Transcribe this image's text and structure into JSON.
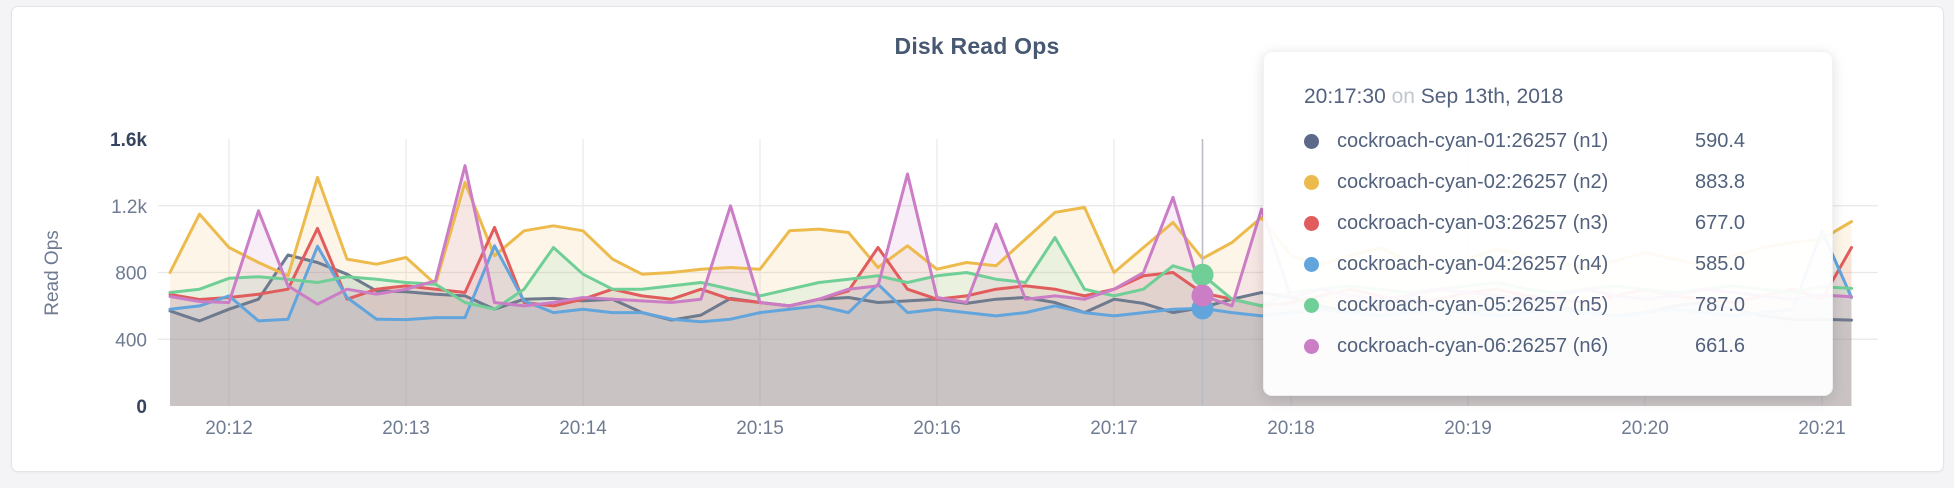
{
  "page": {
    "bg": "#f4f4f6",
    "card_bg": "#ffffff",
    "card_border": "#e3e4e8"
  },
  "chart": {
    "title": "Disk Read Ops",
    "title_color": "#475872",
    "ylabel": "Read Ops",
    "axis_tick_color": "#6f7b92",
    "axis_emph_color": "#37445f",
    "grid_color": "#e8e8e8",
    "hover_line_color": "#b9bcc2"
  },
  "chart_data": {
    "type": "area",
    "x_start_time": "20:11:40",
    "x_interval_seconds": 10,
    "ylim": [
      0,
      1600
    ],
    "grid": true,
    "x_ticks": [
      {
        "label": "20:12",
        "i": 2
      },
      {
        "label": "20:13",
        "i": 8
      },
      {
        "label": "20:14",
        "i": 14
      },
      {
        "label": "20:15",
        "i": 20
      },
      {
        "label": "20:16",
        "i": 26
      },
      {
        "label": "20:17",
        "i": 32
      },
      {
        "label": "20:18",
        "i": 38
      },
      {
        "label": "20:19",
        "i": 44
      },
      {
        "label": "20:20",
        "i": 50
      },
      {
        "label": "20:21",
        "i": 56
      }
    ],
    "y_ticks": [
      {
        "label": "0",
        "v": 0,
        "grid": false,
        "emph": true
      },
      {
        "label": "400",
        "v": 400,
        "grid": true,
        "emph": false
      },
      {
        "label": "800",
        "v": 800,
        "grid": true,
        "emph": false
      },
      {
        "label": "1.2k",
        "v": 1200,
        "grid": true,
        "emph": false
      },
      {
        "label": "1.6k",
        "v": 1600,
        "grid": false,
        "emph": true
      }
    ],
    "series": [
      {
        "id": "n1",
        "name": "cockroach-cyan-01:26257 (n1)",
        "color": "#6e7a8e",
        "values": [
          570,
          510,
          580,
          640,
          905,
          860,
          790,
          690,
          685,
          670,
          660,
          580,
          640,
          645,
          630,
          640,
          560,
          515,
          545,
          645,
          620,
          600,
          640,
          650,
          620,
          630,
          640,
          615,
          640,
          650,
          620,
          560,
          640,
          615,
          560,
          590.4,
          640,
          680,
          650,
          600,
          560,
          600,
          640,
          580,
          560,
          600,
          640,
          600,
          560,
          540,
          560,
          600,
          620,
          580,
          540,
          520,
          520,
          515
        ]
      },
      {
        "id": "n2",
        "name": "cockroach-cyan-02:26257 (n2)",
        "color": "#edbb4d",
        "values": [
          800,
          1150,
          950,
          860,
          780,
          1370,
          880,
          850,
          890,
          730,
          1340,
          900,
          1050,
          1080,
          1050,
          880,
          790,
          800,
          820,
          830,
          820,
          1050,
          1060,
          1040,
          830,
          960,
          820,
          860,
          840,
          1000,
          1160,
          1190,
          800,
          950,
          1100,
          883.8,
          980,
          1130,
          900,
          850,
          900,
          950,
          870,
          820,
          880,
          940,
          900,
          860,
          830,
          870,
          920,
          880,
          840,
          900,
          950,
          980,
          1000,
          1105
        ]
      },
      {
        "id": "n3",
        "name": "cockroach-cyan-03:26257 (n3)",
        "color": "#e15d5d",
        "values": [
          668,
          638,
          650,
          670,
          700,
          1064,
          640,
          700,
          720,
          700,
          680,
          1070,
          620,
          600,
          640,
          700,
          660,
          640,
          700,
          640,
          620,
          600,
          640,
          690,
          950,
          700,
          640,
          660,
          700,
          720,
          700,
          660,
          700,
          780,
          800,
          677,
          640,
          600,
          620,
          660,
          700,
          660,
          620,
          640,
          680,
          700,
          660,
          640,
          620,
          660,
          700,
          660,
          640,
          620,
          660,
          700,
          640,
          950
        ]
      },
      {
        "id": "n4",
        "name": "cockroach-cyan-04:26257 (n4)",
        "color": "#62a5dc",
        "values": [
          580,
          600,
          660,
          510,
          520,
          957,
          650,
          520,
          518,
          530,
          530,
          960,
          630,
          560,
          580,
          560,
          560,
          520,
          505,
          520,
          560,
          580,
          600,
          560,
          730,
          560,
          580,
          560,
          540,
          560,
          600,
          560,
          540,
          560,
          580,
          585,
          560,
          540,
          560,
          580,
          560,
          540,
          560,
          580,
          560,
          540,
          560,
          580,
          560,
          540,
          560,
          580,
          560,
          540,
          560,
          580,
          1050,
          650
        ]
      },
      {
        "id": "n5",
        "name": "cockroach-cyan-05:26257 (n5)",
        "color": "#70cf97",
        "values": [
          680,
          700,
          765,
          775,
          760,
          740,
          775,
          760,
          740,
          730,
          620,
          580,
          700,
          950,
          790,
          700,
          700,
          720,
          740,
          700,
          660,
          700,
          740,
          760,
          780,
          740,
          780,
          800,
          760,
          740,
          1010,
          700,
          660,
          700,
          840,
          787,
          640,
          600,
          680,
          700,
          720,
          700,
          680,
          700,
          720,
          740,
          700,
          680,
          700,
          720,
          700,
          680,
          700,
          720,
          700,
          680,
          715,
          705
        ]
      },
      {
        "id": "n6",
        "name": "cockroach-cyan-06:26257 (n6)",
        "color": "#cb7dc6",
        "values": [
          656,
          626,
          620,
          1170,
          720,
          610,
          700,
          670,
          700,
          750,
          1440,
          620,
          600,
          620,
          650,
          640,
          630,
          620,
          640,
          1200,
          620,
          600,
          640,
          700,
          720,
          1390,
          650,
          620,
          1090,
          640,
          660,
          640,
          700,
          800,
          1250,
          661.6,
          600,
          1180,
          650,
          700,
          660,
          640,
          660,
          700,
          680,
          660,
          640,
          660,
          700,
          660,
          640,
          660,
          700,
          680,
          660,
          640,
          665,
          655
        ]
      }
    ]
  },
  "tooltip": {
    "time": "20:17:30",
    "on_word": "on",
    "date": "Sep 13th, 2018",
    "hover_index": 35,
    "dot_series": [
      3,
      4,
      5
    ],
    "rows": [
      {
        "label": "cockroach-cyan-01:26257 (n1)",
        "value": "590.4",
        "color": "#5b6a89"
      },
      {
        "label": "cockroach-cyan-02:26257 (n2)",
        "value": "883.8",
        "color": "#edbb4d"
      },
      {
        "label": "cockroach-cyan-03:26257 (n3)",
        "value": "677.0",
        "color": "#e15d5d"
      },
      {
        "label": "cockroach-cyan-04:26257 (n4)",
        "value": "585.0",
        "color": "#62a5dc"
      },
      {
        "label": "cockroach-cyan-05:26257 (n5)",
        "value": "787.0",
        "color": "#70cf97"
      },
      {
        "label": "cockroach-cyan-06:26257 (n6)",
        "value": "661.6",
        "color": "#cb7dc6"
      }
    ]
  }
}
